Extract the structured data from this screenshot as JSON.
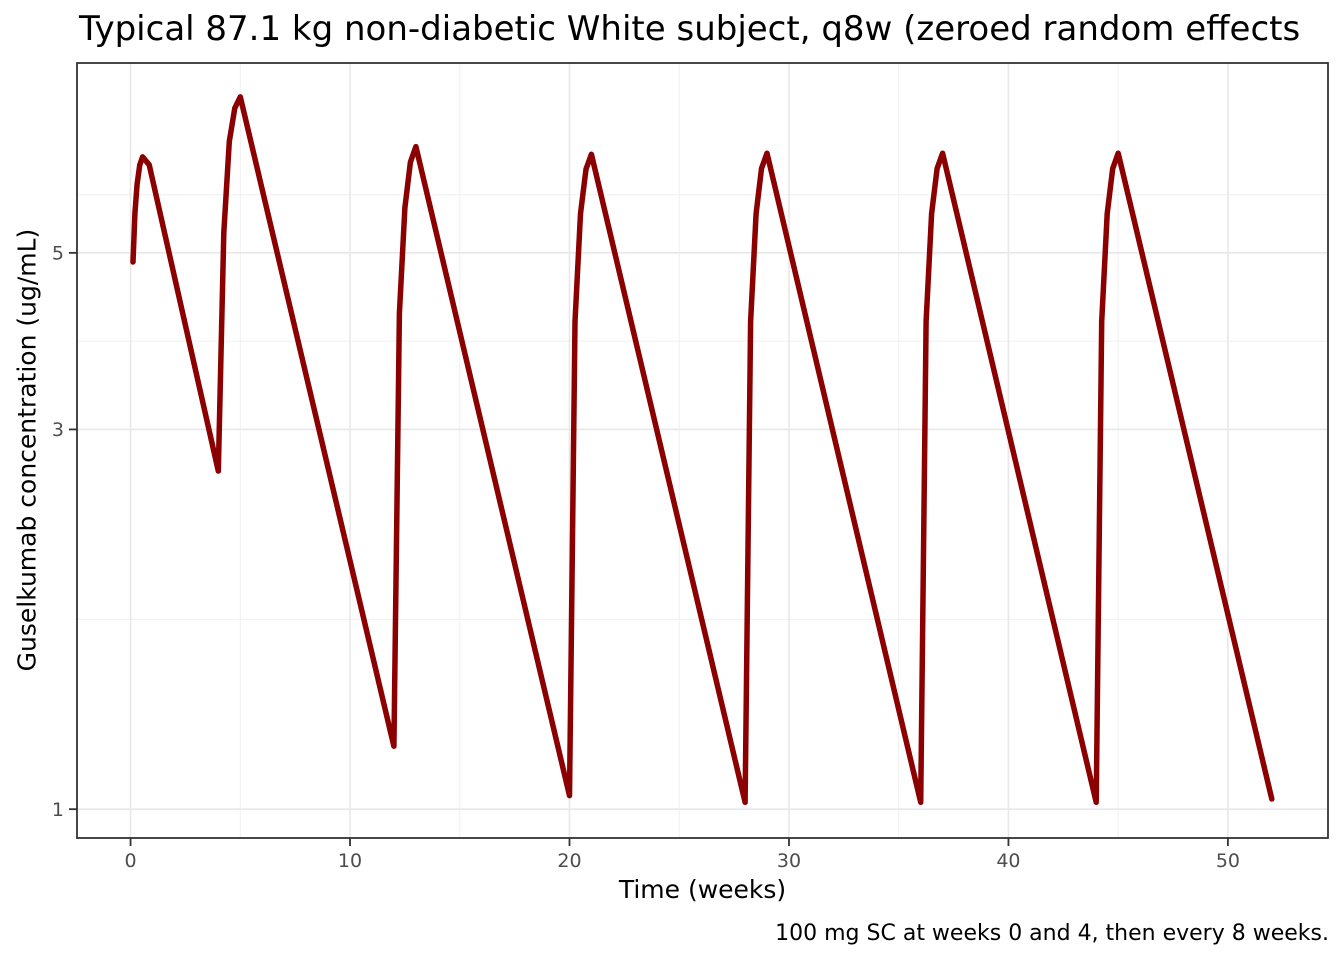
{
  "chart_data": {
    "type": "line",
    "title": "Typical 87.1 kg non-diabetic White subject, q8w (zeroed random effects",
    "xlabel": "Time (weeks)",
    "ylabel": "Guselkumab concentration (ug/mL)",
    "caption": "100 mg SC at weeks 0 and 4, then every 8 weeks.",
    "y_scale": "log10",
    "grid": true,
    "legend": "none",
    "x_ticks": [
      0,
      10,
      20,
      30,
      40,
      50
    ],
    "x_minor_ticks": [
      5,
      15,
      25,
      35,
      45
    ],
    "y_ticks": [
      1,
      3,
      5
    ],
    "y_minor_ticks": [
      1.732,
      3.873,
      5.916
    ],
    "xlim": [
      -2.44,
      54.56
    ],
    "ylim": [
      0.92,
      8.66
    ],
    "line_color": "#8B0000",
    "series": [
      {
        "name": "Guselkumab concentration",
        "points": [
          [
            0.11,
            4.87
          ],
          [
            0.2,
            5.6
          ],
          [
            0.3,
            6.1
          ],
          [
            0.42,
            6.45
          ],
          [
            0.55,
            6.6
          ],
          [
            0.85,
            6.45
          ],
          [
            4,
            2.66
          ],
          [
            4.25,
            5.3
          ],
          [
            4.5,
            6.9
          ],
          [
            4.75,
            7.6
          ],
          [
            5,
            7.85
          ],
          [
            12,
            1.2
          ],
          [
            12.25,
            4.2
          ],
          [
            12.5,
            5.7
          ],
          [
            12.75,
            6.5
          ],
          [
            13,
            6.8
          ],
          [
            20,
            1.04
          ],
          [
            20.25,
            4.1
          ],
          [
            20.5,
            5.6
          ],
          [
            20.75,
            6.37
          ],
          [
            21,
            6.65
          ],
          [
            28,
            1.02
          ],
          [
            28.25,
            4.1
          ],
          [
            28.5,
            5.6
          ],
          [
            28.75,
            6.38
          ],
          [
            29,
            6.67
          ],
          [
            36,
            1.02
          ],
          [
            36.25,
            4.1
          ],
          [
            36.5,
            5.6
          ],
          [
            36.75,
            6.38
          ],
          [
            37,
            6.67
          ],
          [
            44,
            1.02
          ],
          [
            44.25,
            4.1
          ],
          [
            44.5,
            5.6
          ],
          [
            44.75,
            6.38
          ],
          [
            45,
            6.67
          ],
          [
            52,
            1.03
          ]
        ]
      }
    ],
    "peaks": [
      [
        0.55,
        6.6
      ],
      [
        5,
        7.85
      ],
      [
        13,
        6.8
      ],
      [
        21,
        6.65
      ],
      [
        29,
        6.67
      ],
      [
        37,
        6.67
      ],
      [
        45,
        6.67
      ]
    ],
    "troughs": [
      [
        4,
        2.66
      ],
      [
        12,
        1.2
      ],
      [
        20,
        1.04
      ],
      [
        28,
        1.02
      ],
      [
        36,
        1.02
      ],
      [
        44,
        1.02
      ],
      [
        52,
        1.03
      ]
    ]
  },
  "style_colors": {
    "line": "#8B0000",
    "major_grid": "#E8E8E8",
    "minor_grid": "#F0F0F0",
    "panel_border": "#333333",
    "tick_mark": "#333333",
    "tick_label": "#4D4D4D"
  }
}
